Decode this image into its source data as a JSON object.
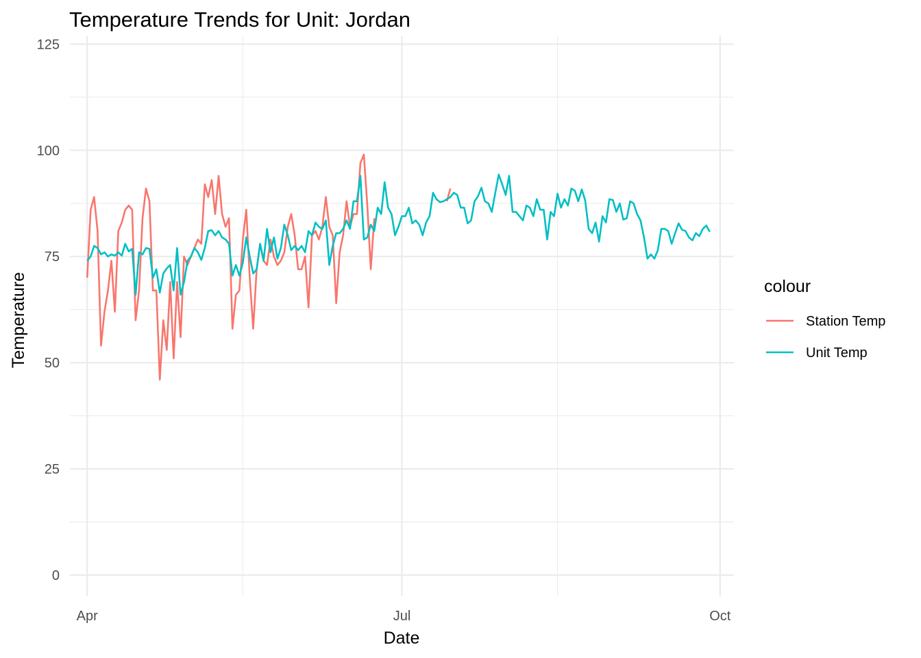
{
  "chart_data": {
    "type": "line",
    "title": "Temperature Trends for Unit: Jordan",
    "xlabel": "Date",
    "ylabel": "Temperature",
    "x_tick_labels": [
      {
        "date": "2024-04-01",
        "label": "Apr"
      },
      {
        "date": "2024-07-01",
        "label": "Jul"
      },
      {
        "date": "2024-10-01",
        "label": "Oct"
      }
    ],
    "x_minor_ticks": [
      "2024-05-16",
      "2024-08-15"
    ],
    "xlim": [
      "2024-03-27",
      "2024-10-05"
    ],
    "y_ticks": [
      0,
      25,
      50,
      75,
      100,
      125
    ],
    "y_tick_labels": [
      "0",
      "25",
      "50",
      "75",
      "100",
      "125"
    ],
    "ylim": [
      -5,
      127
    ],
    "grid": true,
    "legend": {
      "title": "colour",
      "position": "right"
    },
    "series": [
      {
        "name": "Station Temp",
        "color": "#F8766D",
        "points": [
          [
            "2024-04-01",
            70
          ],
          [
            "2024-04-02",
            86
          ],
          [
            "2024-04-03",
            89
          ],
          [
            "2024-04-04",
            81
          ],
          [
            "2024-04-05",
            54
          ],
          [
            "2024-04-06",
            62
          ],
          [
            "2024-04-07",
            67
          ],
          [
            "2024-04-08",
            74
          ],
          [
            "2024-04-09",
            62
          ],
          [
            "2024-04-10",
            81
          ],
          [
            "2024-04-11",
            83
          ],
          [
            "2024-04-12",
            86
          ],
          [
            "2024-04-13",
            87
          ],
          [
            "2024-04-14",
            86
          ],
          [
            "2024-04-15",
            60
          ],
          [
            "2024-04-16",
            67
          ],
          [
            "2024-04-17",
            84
          ],
          [
            "2024-04-18",
            91
          ],
          [
            "2024-04-19",
            88
          ],
          [
            "2024-04-20",
            67
          ],
          [
            "2024-04-21",
            67
          ],
          [
            "2024-04-22",
            46
          ],
          [
            "2024-04-23",
            60
          ],
          [
            "2024-04-24",
            53
          ],
          [
            "2024-04-25",
            69
          ],
          [
            "2024-04-26",
            51
          ],
          [
            "2024-04-27",
            69
          ],
          [
            "2024-04-28",
            56
          ],
          [
            "2024-04-29",
            75
          ],
          [
            "2024-04-30",
            73
          ],
          [
            "2024-05-01",
            75
          ],
          [
            "2024-05-02",
            77
          ],
          [
            "2024-05-03",
            79
          ],
          [
            "2024-05-04",
            78
          ],
          [
            "2024-05-05",
            92
          ],
          [
            "2024-05-06",
            89
          ],
          [
            "2024-05-07",
            93
          ],
          [
            "2024-05-08",
            85
          ],
          [
            "2024-05-09",
            94
          ],
          [
            "2024-05-10",
            85
          ],
          [
            "2024-05-11",
            82
          ],
          [
            "2024-05-12",
            84
          ],
          [
            "2024-05-13",
            58
          ],
          [
            "2024-05-14",
            66
          ],
          [
            "2024-05-15",
            67
          ],
          [
            "2024-05-16",
            79
          ],
          [
            "2024-05-17",
            86
          ],
          [
            "2024-05-18",
            70
          ],
          [
            "2024-05-19",
            58
          ],
          [
            "2024-05-20",
            72
          ],
          [
            "2024-05-21",
            78
          ],
          [
            "2024-05-22",
            74
          ],
          [
            "2024-05-23",
            73
          ],
          [
            "2024-05-24",
            79
          ],
          [
            "2024-05-25",
            75
          ],
          [
            "2024-05-26",
            73
          ],
          [
            "2024-05-27",
            74
          ],
          [
            "2024-05-28",
            76
          ],
          [
            "2024-05-29",
            82
          ],
          [
            "2024-05-30",
            85
          ],
          [
            "2024-05-31",
            80
          ],
          [
            "2024-06-01",
            72
          ],
          [
            "2024-06-02",
            72
          ],
          [
            "2024-06-03",
            75
          ],
          [
            "2024-06-04",
            63
          ],
          [
            "2024-06-05",
            80
          ],
          [
            "2024-06-06",
            81
          ],
          [
            "2024-06-07",
            79
          ],
          [
            "2024-06-08",
            82
          ],
          [
            "2024-06-09",
            89
          ],
          [
            "2024-06-10",
            82
          ],
          [
            "2024-06-11",
            80
          ],
          [
            "2024-06-12",
            64
          ],
          [
            "2024-06-13",
            76
          ],
          [
            "2024-06-14",
            80
          ],
          [
            "2024-06-15",
            88
          ],
          [
            "2024-06-16",
            82
          ],
          [
            "2024-06-17",
            85
          ],
          [
            "2024-06-18",
            85
          ],
          [
            "2024-06-19",
            97
          ],
          [
            "2024-06-20",
            99
          ],
          [
            "2024-06-21",
            87
          ],
          [
            "2024-06-22",
            72
          ],
          [
            "2024-06-23",
            84
          ],
          [
            "2024-07-14",
            88
          ],
          [
            "2024-07-15",
            91
          ]
        ]
      },
      {
        "name": "Unit Temp",
        "color": "#00BFC4",
        "points": [
          [
            "2024-04-01",
            74
          ],
          [
            "2024-04-02",
            75
          ],
          [
            "2024-04-03",
            77.5
          ],
          [
            "2024-04-04",
            77
          ],
          [
            "2024-04-05",
            75.5
          ],
          [
            "2024-04-06",
            76
          ],
          [
            "2024-04-07",
            75
          ],
          [
            "2024-04-08",
            75.5
          ],
          [
            "2024-04-09",
            75.2
          ],
          [
            "2024-04-10",
            76
          ],
          [
            "2024-04-11",
            75.2
          ],
          [
            "2024-04-12",
            78
          ],
          [
            "2024-04-13",
            76.2
          ],
          [
            "2024-04-14",
            76.8
          ],
          [
            "2024-04-15",
            66
          ],
          [
            "2024-04-16",
            76
          ],
          [
            "2024-04-17",
            75.5
          ],
          [
            "2024-04-18",
            77
          ],
          [
            "2024-04-19",
            76.8
          ],
          [
            "2024-04-20",
            70
          ],
          [
            "2024-04-21",
            72
          ],
          [
            "2024-04-22",
            66.5
          ],
          [
            "2024-04-23",
            71
          ],
          [
            "2024-04-24",
            72.2
          ],
          [
            "2024-04-25",
            73
          ],
          [
            "2024-04-26",
            67
          ],
          [
            "2024-04-27",
            77
          ],
          [
            "2024-04-28",
            66
          ],
          [
            "2024-04-29",
            69
          ],
          [
            "2024-04-30",
            74
          ],
          [
            "2024-05-01",
            75
          ],
          [
            "2024-05-02",
            77
          ],
          [
            "2024-05-03",
            76
          ],
          [
            "2024-05-04",
            74.2
          ],
          [
            "2024-05-05",
            77
          ],
          [
            "2024-05-06",
            81
          ],
          [
            "2024-05-07",
            81.2
          ],
          [
            "2024-05-08",
            80
          ],
          [
            "2024-05-09",
            81
          ],
          [
            "2024-05-10",
            79.5
          ],
          [
            "2024-05-11",
            79
          ],
          [
            "2024-05-12",
            78
          ],
          [
            "2024-05-13",
            70.5
          ],
          [
            "2024-05-14",
            73
          ],
          [
            "2024-05-15",
            70.5
          ],
          [
            "2024-05-16",
            73.5
          ],
          [
            "2024-05-17",
            79.5
          ],
          [
            "2024-05-18",
            75
          ],
          [
            "2024-05-19",
            71
          ],
          [
            "2024-05-20",
            72
          ],
          [
            "2024-05-21",
            78
          ],
          [
            "2024-05-22",
            74
          ],
          [
            "2024-05-23",
            81.5
          ],
          [
            "2024-05-24",
            76
          ],
          [
            "2024-05-25",
            79.5
          ],
          [
            "2024-05-26",
            74.5
          ],
          [
            "2024-05-27",
            77
          ],
          [
            "2024-05-28",
            82.5
          ],
          [
            "2024-05-29",
            80
          ],
          [
            "2024-05-30",
            76.5
          ],
          [
            "2024-05-31",
            77.5
          ],
          [
            "2024-06-01",
            76.5
          ],
          [
            "2024-06-02",
            77.5
          ],
          [
            "2024-06-03",
            76
          ],
          [
            "2024-06-04",
            81
          ],
          [
            "2024-06-05",
            80
          ],
          [
            "2024-06-06",
            83
          ],
          [
            "2024-06-07",
            82
          ],
          [
            "2024-06-08",
            81.5
          ],
          [
            "2024-06-09",
            83.5
          ],
          [
            "2024-06-10",
            73
          ],
          [
            "2024-06-11",
            77.5
          ],
          [
            "2024-06-12",
            80.5
          ],
          [
            "2024-06-13",
            80.5
          ],
          [
            "2024-06-14",
            81.5
          ],
          [
            "2024-06-15",
            83.5
          ],
          [
            "2024-06-16",
            81.5
          ],
          [
            "2024-06-17",
            88
          ],
          [
            "2024-06-18",
            88
          ],
          [
            "2024-06-19",
            94
          ],
          [
            "2024-06-20",
            79
          ],
          [
            "2024-06-21",
            79.5
          ],
          [
            "2024-06-22",
            82.5
          ],
          [
            "2024-06-23",
            81
          ],
          [
            "2024-06-24",
            86.5
          ],
          [
            "2024-06-25",
            85
          ],
          [
            "2024-06-26",
            92.5
          ],
          [
            "2024-06-27",
            86.5
          ],
          [
            "2024-06-28",
            85
          ],
          [
            "2024-06-29",
            80
          ],
          [
            "2024-06-30",
            82
          ],
          [
            "2024-07-01",
            84.5
          ],
          [
            "2024-07-02",
            84.5
          ],
          [
            "2024-07-03",
            86.5
          ],
          [
            "2024-07-04",
            82.8
          ],
          [
            "2024-07-05",
            83.5
          ],
          [
            "2024-07-06",
            82.5
          ],
          [
            "2024-07-07",
            80
          ],
          [
            "2024-07-08",
            83
          ],
          [
            "2024-07-09",
            84.5
          ],
          [
            "2024-07-10",
            90
          ],
          [
            "2024-07-11",
            88.5
          ],
          [
            "2024-07-12",
            87.8
          ],
          [
            "2024-07-13",
            88
          ],
          [
            "2024-07-14",
            88.5
          ],
          [
            "2024-07-15",
            89
          ],
          [
            "2024-07-16",
            90
          ],
          [
            "2024-07-17",
            89.5
          ],
          [
            "2024-07-18",
            86.5
          ],
          [
            "2024-07-19",
            86.5
          ],
          [
            "2024-07-20",
            82.8
          ],
          [
            "2024-07-21",
            83.5
          ],
          [
            "2024-07-22",
            88
          ],
          [
            "2024-07-23",
            89.2
          ],
          [
            "2024-07-24",
            91.2
          ],
          [
            "2024-07-25",
            88
          ],
          [
            "2024-07-26",
            87.5
          ],
          [
            "2024-07-27",
            85.5
          ],
          [
            "2024-07-28",
            90
          ],
          [
            "2024-07-29",
            94.3
          ],
          [
            "2024-07-30",
            92
          ],
          [
            "2024-07-31",
            89.5
          ],
          [
            "2024-08-01",
            94
          ],
          [
            "2024-08-02",
            85.5
          ],
          [
            "2024-08-03",
            85.5
          ],
          [
            "2024-08-04",
            84.5
          ],
          [
            "2024-08-05",
            83.5
          ],
          [
            "2024-08-06",
            87
          ],
          [
            "2024-08-07",
            86.5
          ],
          [
            "2024-08-08",
            84.5
          ],
          [
            "2024-08-09",
            88.5
          ],
          [
            "2024-08-10",
            86
          ],
          [
            "2024-08-11",
            86
          ],
          [
            "2024-08-12",
            79
          ],
          [
            "2024-08-13",
            85.5
          ],
          [
            "2024-08-14",
            84.5
          ],
          [
            "2024-08-15",
            89.8
          ],
          [
            "2024-08-16",
            86.5
          ],
          [
            "2024-08-17",
            88.5
          ],
          [
            "2024-08-18",
            87
          ],
          [
            "2024-08-19",
            91
          ],
          [
            "2024-08-20",
            90.5
          ],
          [
            "2024-08-21",
            88
          ],
          [
            "2024-08-22",
            90.8
          ],
          [
            "2024-08-23",
            88.2
          ],
          [
            "2024-08-24",
            81.5
          ],
          [
            "2024-08-25",
            80.5
          ],
          [
            "2024-08-26",
            83
          ],
          [
            "2024-08-27",
            78.5
          ],
          [
            "2024-08-28",
            84.5
          ],
          [
            "2024-08-29",
            83
          ],
          [
            "2024-08-30",
            88.5
          ],
          [
            "2024-08-31",
            88.3
          ],
          [
            "2024-09-01",
            85.5
          ],
          [
            "2024-09-02",
            87.5
          ],
          [
            "2024-09-03",
            83.7
          ],
          [
            "2024-09-04",
            84
          ],
          [
            "2024-09-05",
            88
          ],
          [
            "2024-09-06",
            87.5
          ],
          [
            "2024-09-07",
            85
          ],
          [
            "2024-09-08",
            83.5
          ],
          [
            "2024-09-09",
            79.5
          ],
          [
            "2024-09-10",
            74.5
          ],
          [
            "2024-09-11",
            75.5
          ],
          [
            "2024-09-12",
            74.5
          ],
          [
            "2024-09-13",
            76.5
          ],
          [
            "2024-09-14",
            81.5
          ],
          [
            "2024-09-15",
            81.5
          ],
          [
            "2024-09-16",
            81
          ],
          [
            "2024-09-17",
            78
          ],
          [
            "2024-09-18",
            80.5
          ],
          [
            "2024-09-19",
            82.8
          ],
          [
            "2024-09-20",
            81.3
          ],
          [
            "2024-09-21",
            81
          ],
          [
            "2024-09-22",
            79.5
          ],
          [
            "2024-09-23",
            78.8
          ],
          [
            "2024-09-24",
            80.5
          ],
          [
            "2024-09-25",
            79.8
          ],
          [
            "2024-09-26",
            81.5
          ],
          [
            "2024-09-27",
            82.3
          ],
          [
            "2024-09-28",
            80.8
          ]
        ]
      }
    ]
  }
}
